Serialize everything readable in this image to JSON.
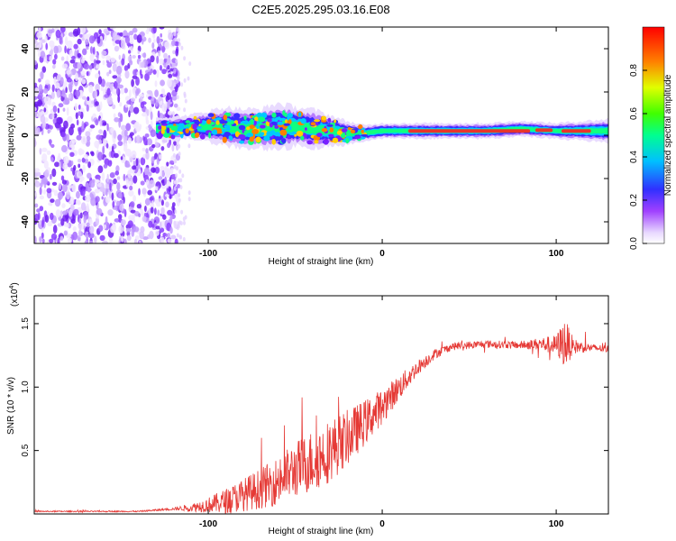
{
  "title": "C2E5.2025.295.03.16.E08",
  "chart_data": [
    {
      "type": "heatmap",
      "name": "spectrogram",
      "xlabel": "Height of straight line (km)",
      "ylabel": "Frequency (Hz)",
      "xlim": [
        -200,
        130
      ],
      "ylim": [
        -50,
        50
      ],
      "xticks": [
        -100,
        0,
        100
      ],
      "yticks": [
        -40,
        -20,
        0,
        20,
        40
      ],
      "noise_region_x": [
        -200,
        -120
      ],
      "signal_band": {
        "x": [
          -130,
          -120,
          -110,
          -100,
          -90,
          -80,
          -70,
          -60,
          -50,
          -40,
          -30,
          -20,
          -10,
          0,
          10,
          20,
          40,
          60,
          80,
          100,
          130
        ],
        "center_hz": [
          3,
          3,
          4,
          4,
          4,
          3,
          3,
          4,
          4,
          3,
          2,
          1,
          1,
          2,
          2,
          2,
          2,
          2,
          3,
          2,
          2
        ],
        "halfwidth_hz": [
          3,
          3,
          3,
          4,
          5,
          5,
          5,
          6,
          5,
          5,
          4,
          3,
          2,
          2,
          2,
          2,
          2,
          2,
          2,
          2,
          3
        ]
      },
      "colorbar": {
        "label": "Normalized spectral amplitude",
        "range": [
          0,
          1
        ],
        "ticks": [
          0.0,
          0.2,
          0.4,
          0.6,
          0.8
        ]
      }
    },
    {
      "type": "line",
      "name": "snr",
      "xlabel": "Height of straight line (km)",
      "ylabel": "SNR (10 * v/v)",
      "scale_label": "(x10",
      "scale_exp": "4",
      "xlim": [
        -200,
        130
      ],
      "ylim": [
        0,
        1.72
      ],
      "xticks": [
        -100,
        0,
        100
      ],
      "yticks": [
        0.5,
        1.0,
        1.5
      ],
      "envelope": {
        "x": [
          -200,
          -140,
          -120,
          -110,
          -100,
          -90,
          -80,
          -70,
          -60,
          -50,
          -40,
          -30,
          -20,
          -10,
          0,
          10,
          20,
          30,
          40,
          60,
          80,
          90,
          100,
          105,
          110,
          120,
          130
        ],
        "y": [
          0.02,
          0.02,
          0.04,
          0.05,
          0.07,
          0.1,
          0.15,
          0.2,
          0.26,
          0.35,
          0.42,
          0.5,
          0.6,
          0.72,
          0.85,
          1.0,
          1.15,
          1.26,
          1.32,
          1.34,
          1.33,
          1.34,
          1.33,
          1.35,
          1.32,
          1.31,
          1.3
        ]
      },
      "noise_amplitude": {
        "x": [
          -200,
          -140,
          -120,
          -110,
          -100,
          -90,
          -80,
          -70,
          -60,
          -50,
          -40,
          -30,
          -20,
          -10,
          0,
          10,
          20,
          30,
          40,
          60,
          80,
          90,
          100,
          105,
          110,
          120,
          130
        ],
        "y": [
          0.005,
          0.005,
          0.01,
          0.03,
          0.06,
          0.1,
          0.13,
          0.16,
          0.19,
          0.22,
          0.25,
          0.25,
          0.22,
          0.18,
          0.14,
          0.1,
          0.06,
          0.04,
          0.03,
          0.03,
          0.03,
          0.05,
          0.08,
          0.2,
          0.06,
          0.03,
          0.03
        ]
      },
      "color": "#e53935"
    }
  ]
}
